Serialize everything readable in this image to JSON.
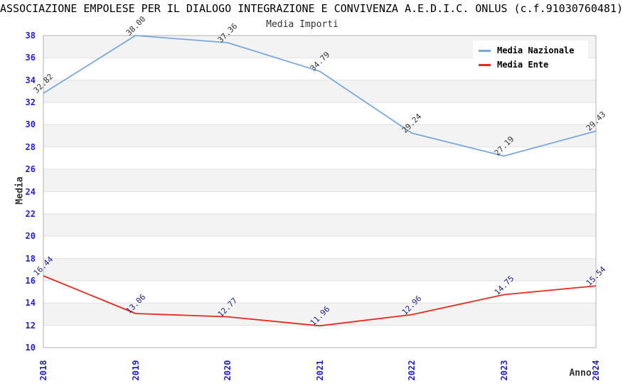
{
  "chart_data": {
    "type": "line",
    "title": "ASSOCIAZIONE EMPOLESE PER IL DIALOGO INTEGRAZIONE E CONVIVENZA A.E.D.I.C. ONLUS (c.f.91030760481)",
    "subtitle": "Media Importi",
    "xlabel": "Anno",
    "ylabel": "Media",
    "x": [
      "2018",
      "2019",
      "2020",
      "2021",
      "2022",
      "2023",
      "2024"
    ],
    "ylim": [
      10,
      38
    ],
    "ytick_step": 2,
    "grid": "horizontal-gridlines-with-alternating-gray-bands",
    "legend_position": "top-right-inside",
    "series": [
      {
        "name": "Media Nazionale",
        "color": "#79a8dd",
        "label_color": "#333333",
        "values": [
          32.82,
          38.0,
          37.36,
          34.79,
          29.24,
          27.19,
          29.43
        ],
        "labels": [
          "32.82",
          "38.00",
          "37.36",
          "34.79",
          "29.24",
          "27.19",
          "29.43"
        ]
      },
      {
        "name": "Media Ente",
        "color": "#e8291d",
        "label_color": "#1c1c8f",
        "values": [
          16.44,
          13.06,
          12.77,
          11.96,
          12.96,
          14.75,
          15.54
        ],
        "labels": [
          "16.44",
          "13.06",
          "12.77",
          "11.96",
          "12.96",
          "14.75",
          "15.54"
        ]
      }
    ],
    "colors": {
      "tick_label": "#2222cc",
      "stripe": "#f3f3f3",
      "gridline": "#e2e2e2",
      "plot_border": "#b0b0b0",
      "background": "#ffffff"
    }
  }
}
